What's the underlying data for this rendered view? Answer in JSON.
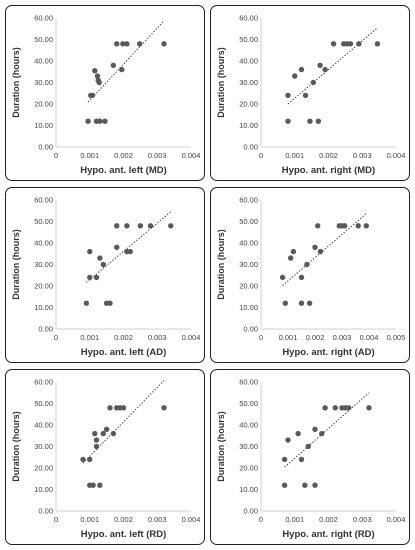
{
  "colors": {
    "point": "#595959",
    "trend": "#404040",
    "axis": "#d0d0d0",
    "border": "#222222"
  },
  "chart_data": [
    {
      "type": "scatter",
      "xlabel": "Hypo. ant. left (MD)",
      "ylabel": "Duration (hours)",
      "xlim": [
        0,
        0.004
      ],
      "ylim": [
        0,
        60
      ],
      "xticks": [
        "0",
        "0.001",
        "0.002",
        "0.003",
        "0.004"
      ],
      "yticks": [
        "0.00",
        "10.00",
        "20.00",
        "30.00",
        "40.00",
        "50.00",
        "60.00"
      ],
      "trendline": true,
      "x": [
        0.00095,
        0.00103,
        0.00108,
        0.00115,
        0.0012,
        0.00123,
        0.00128,
        0.0013,
        0.00125,
        0.00145,
        0.0017,
        0.0018,
        0.00195,
        0.00198,
        0.0021,
        0.00248,
        0.0032
      ],
      "y": [
        12,
        24,
        24,
        35.5,
        12,
        33,
        30,
        12,
        31,
        12,
        38,
        48,
        36,
        48,
        48,
        48,
        48
      ]
    },
    {
      "type": "scatter",
      "xlabel": "Hypo. ant. right (MD)",
      "ylabel": "Duration (hours)",
      "xlim": [
        0,
        0.004
      ],
      "ylim": [
        0,
        60
      ],
      "xticks": [
        "0",
        "0.001",
        "0.002",
        "0.003",
        "0.004"
      ],
      "yticks": [
        "0.00",
        "10.00",
        "20.00",
        "30.00",
        "40.00",
        "50.00",
        "60.00"
      ],
      "trendline": true,
      "x": [
        0.0008,
        0.0008,
        0.001,
        0.0012,
        0.00132,
        0.00145,
        0.00155,
        0.0017,
        0.00175,
        0.0019,
        0.00215,
        0.00245,
        0.00255,
        0.00265,
        0.0029,
        0.00345
      ],
      "y": [
        24,
        12,
        33,
        36,
        24,
        12,
        30,
        12,
        38,
        36,
        48,
        48,
        48,
        48,
        48,
        48
      ]
    },
    {
      "type": "scatter",
      "xlabel": "Hypo. ant. left (AD)",
      "ylabel": "Duration (hours)",
      "xlim": [
        0,
        0.004
      ],
      "ylim": [
        0,
        60
      ],
      "xticks": [
        "0",
        "0.001",
        "0.002",
        "0.003",
        "0.004"
      ],
      "yticks": [
        "0.00",
        "10.00",
        "20.00",
        "30.00",
        "40.00",
        "50.00",
        "60.00"
      ],
      "trendline": true,
      "x": [
        0.0009,
        0.001,
        0.001,
        0.0012,
        0.0013,
        0.0014,
        0.0015,
        0.0016,
        0.0018,
        0.0018,
        0.0021,
        0.0021,
        0.0022,
        0.0025,
        0.0028,
        0.0034
      ],
      "y": [
        12,
        36,
        24,
        24,
        33,
        30,
        12,
        12,
        38,
        48,
        36,
        48,
        36,
        48,
        48,
        48
      ]
    },
    {
      "type": "scatter",
      "xlabel": "Hypo. ant. right (AD)",
      "ylabel": "Duration (hours)",
      "xlim": [
        0,
        0.005
      ],
      "ylim": [
        0,
        60
      ],
      "xticks": [
        "0",
        "0.001",
        "0.002",
        "0.003",
        "0.004",
        "0.005"
      ],
      "yticks": [
        "0.00",
        "10.00",
        "20.00",
        "30.00",
        "40.00",
        "50.00",
        "60.00"
      ],
      "trendline": true,
      "x": [
        0.0008,
        0.0009,
        0.0011,
        0.0012,
        0.0015,
        0.0015,
        0.0017,
        0.0018,
        0.002,
        0.0021,
        0.0022,
        0.0029,
        0.003,
        0.0031,
        0.0036,
        0.0039
      ],
      "y": [
        24,
        12,
        33,
        36,
        24,
        12,
        30,
        12,
        38,
        48,
        36,
        48,
        48,
        48,
        48,
        48
      ]
    },
    {
      "type": "scatter",
      "xlabel": "Hypo. ant. left (RD)",
      "ylabel": "Duration (hours)",
      "xlim": [
        0,
        0.004
      ],
      "ylim": [
        0,
        60
      ],
      "xticks": [
        "0",
        "0.001",
        "0.002",
        "0.003",
        "0.004"
      ],
      "yticks": [
        "0.00",
        "10.00",
        "20.00",
        "30.00",
        "40.00",
        "50.00",
        "60.00"
      ],
      "trendline": true,
      "x": [
        0.0008,
        0.001,
        0.001,
        0.0011,
        0.0012,
        0.0012,
        0.0013,
        0.0014,
        0.0015,
        0.0016,
        0.0017,
        0.0018,
        0.0019,
        0.002,
        0.0032,
        0.00115
      ],
      "y": [
        24,
        24,
        12,
        12,
        33,
        30,
        12,
        36,
        38,
        48,
        36,
        48,
        48,
        48,
        48,
        36
      ]
    },
    {
      "type": "scatter",
      "xlabel": "Hypo. ant. right (RD)",
      "ylabel": "Duration (hours)",
      "xlim": [
        0,
        0.004
      ],
      "ylim": [
        0,
        60
      ],
      "xticks": [
        "0",
        "0.001",
        "0.002",
        "0.003",
        "0.004"
      ],
      "yticks": [
        "0.00",
        "10.00",
        "20.00",
        "30.00",
        "40.00",
        "50.00",
        "60.00"
      ],
      "trendline": true,
      "x": [
        0.0007,
        0.0007,
        0.0008,
        0.0011,
        0.0012,
        0.0013,
        0.0014,
        0.0016,
        0.0016,
        0.0018,
        0.0019,
        0.0022,
        0.0024,
        0.0025,
        0.0026,
        0.0032
      ],
      "y": [
        24,
        12,
        33,
        36,
        24,
        12,
        30,
        38,
        12,
        36,
        48,
        48,
        48,
        48,
        48,
        48
      ]
    }
  ]
}
